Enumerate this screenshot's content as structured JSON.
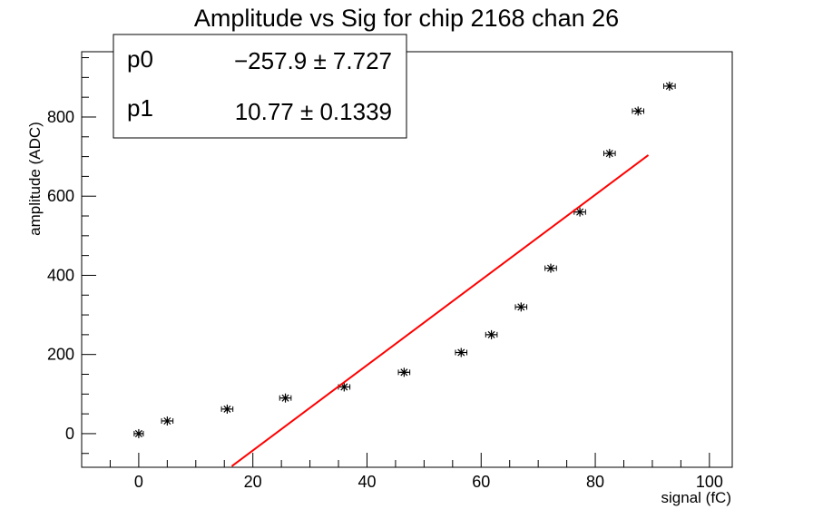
{
  "chart_data": {
    "type": "scatter",
    "title": "Amplitude vs Sig for chip 2168 chan 26",
    "xlabel": "signal (fC)",
    "ylabel": "amplitude (ADC)",
    "xlim": [
      -10,
      104
    ],
    "ylim": [
      -85,
      965
    ],
    "xticks": [
      0,
      20,
      40,
      60,
      80,
      100
    ],
    "yticks": [
      0,
      200,
      400,
      600,
      800
    ],
    "grid": false,
    "points": {
      "x": [
        0,
        5,
        15.5,
        25.7,
        36,
        46.5,
        56.5,
        61.8,
        67,
        72.2,
        77.3,
        82.5,
        87.5,
        93
      ],
      "y": [
        0,
        32,
        62,
        90,
        118,
        155,
        205,
        250,
        320,
        418,
        560,
        708,
        815,
        878
      ],
      "xerr": [
        0.8,
        1.0,
        1.0,
        1.0,
        1.0,
        1.0,
        1.0,
        1.0,
        1.0,
        1.0,
        1.0,
        1.0,
        1.0,
        1.0
      ],
      "yerr": [
        5,
        5,
        5,
        5,
        5,
        5,
        5,
        5,
        5,
        5,
        5,
        5,
        5,
        5
      ]
    },
    "fit": {
      "type": "line",
      "color": "#ff0000",
      "x_range": [
        16.3,
        89.3
      ],
      "p0": -257.9,
      "p1": 10.77
    },
    "stats": [
      {
        "name": "p0",
        "value": "−257.9 ± 7.727"
      },
      {
        "name": "p1",
        "value": "10.77 ± 0.1339"
      }
    ]
  }
}
